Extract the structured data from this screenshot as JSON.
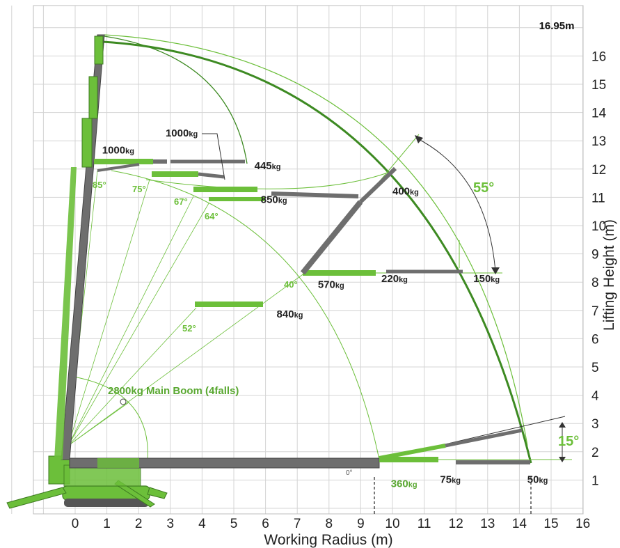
{
  "chart_data": {
    "type": "diagram",
    "x_axis": {
      "title": "Working Radius (m)",
      "ticks": [
        "0",
        "1",
        "2",
        "3",
        "4",
        "5",
        "6",
        "7",
        "8",
        "9",
        "10",
        "11",
        "12",
        "13",
        "14",
        "15",
        "16"
      ]
    },
    "y_axis": {
      "title": "Lifting Height (m)",
      "ticks": [
        "1",
        "2",
        "3",
        "4",
        "5",
        "6",
        "7",
        "8",
        "9",
        "10",
        "11",
        "12",
        "13",
        "14",
        "15",
        "16"
      ]
    },
    "max_height_label": "16.95m",
    "big_angles": {
      "jib_sweep": "55°",
      "fly_tilt": "15°"
    },
    "main_boom_label": "2800kg Main Boom (4falls)",
    "boom_angles": [
      "85°",
      "75°",
      "67°",
      "64°",
      "52°",
      "40°",
      "0°"
    ],
    "loads": [
      {
        "value": "1000",
        "unit": "kg",
        "x": 0.85,
        "y": 12.55
      },
      {
        "value": "1000",
        "unit": "kg",
        "x": 2.85,
        "y": 13.15
      },
      {
        "value": "445",
        "unit": "kg",
        "x": 5.65,
        "y": 12.0
      },
      {
        "value": "850",
        "unit": "kg",
        "x": 5.85,
        "y": 10.8
      },
      {
        "value": "400",
        "unit": "kg",
        "x": 10.0,
        "y": 11.1
      },
      {
        "value": "570",
        "unit": "kg",
        "x": 7.65,
        "y": 7.8
      },
      {
        "value": "220",
        "unit": "kg",
        "x": 9.65,
        "y": 8.0
      },
      {
        "value": "150",
        "unit": "kg",
        "x": 12.55,
        "y": 8.0
      },
      {
        "value": "840",
        "unit": "kg",
        "x": 6.35,
        "y": 6.75
      },
      {
        "value": "360",
        "unit": "kg",
        "x": 9.95,
        "y": 0.75
      },
      {
        "value": "75",
        "unit": "kg",
        "x": 11.5,
        "y": 0.9
      },
      {
        "value": "50",
        "unit": "kg",
        "x": 14.25,
        "y": 0.9
      }
    ]
  },
  "colors": {
    "green": "#6cbf3a",
    "dark_green": "#3d8a22",
    "steel": "#6e6e6e",
    "grid": "#d4d4d4"
  }
}
